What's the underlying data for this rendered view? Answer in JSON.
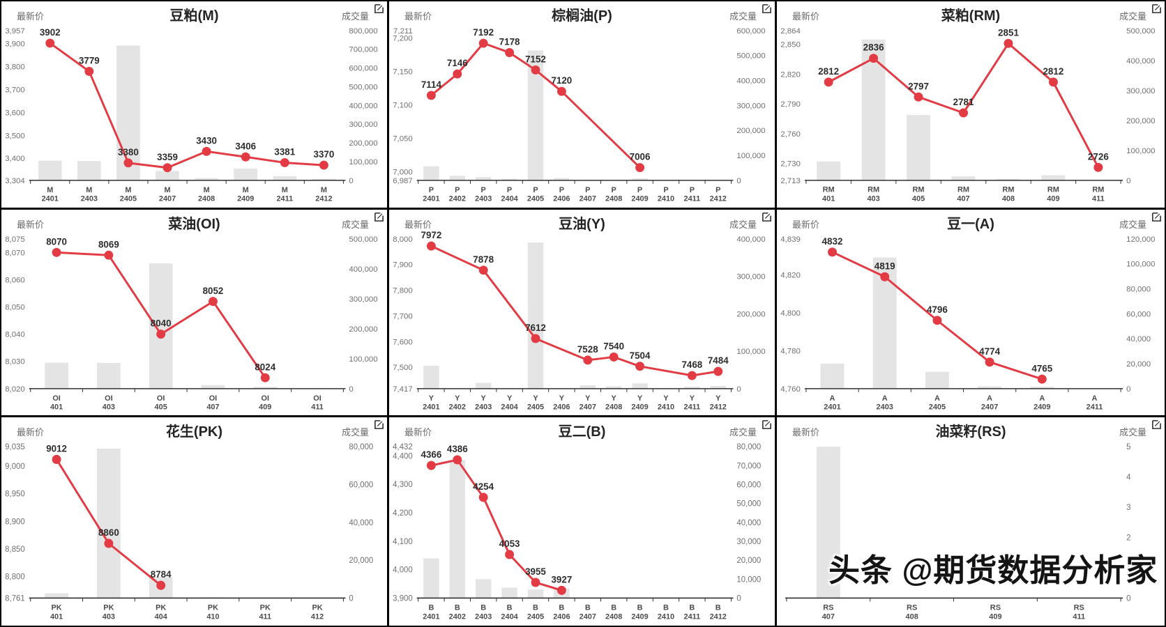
{
  "app": {
    "watermark": "头条 @期货数据分析家"
  },
  "labels": {
    "price_axis": "最新价",
    "volume_axis": "成交量"
  },
  "colors": {
    "line": "#e23b44",
    "point": "#e23b44",
    "bar": "#e4e4e4",
    "data_label": "#2d2d2d",
    "axis_text": "#6f6f6f",
    "category_text": "#4c4c4c",
    "title": "#242424",
    "axis_line": "#303030",
    "divider": "#000000",
    "watermark": "#141414"
  },
  "chart_data": [
    {
      "type": "line+bar",
      "title": "豆粕(M)",
      "categories": [
        [
          "M",
          "2401"
        ],
        [
          "M",
          "2403"
        ],
        [
          "M",
          "2405"
        ],
        [
          "M",
          "2407"
        ],
        [
          "M",
          "2408"
        ],
        [
          "M",
          "2409"
        ],
        [
          "M",
          "2411"
        ],
        [
          "M",
          "2412"
        ]
      ],
      "price_ticks": [
        "3,957",
        "3,900",
        "3,800",
        "3,700",
        "3,600",
        "3,500",
        "3,400",
        "3,304"
      ],
      "volume_ticks": [
        "800,000",
        "700,000",
        "600,000",
        "500,000",
        "400,000",
        "300,000",
        "200,000",
        "100,000",
        "0"
      ],
      "prices": [
        3902,
        3779,
        3380,
        3359,
        3430,
        3406,
        3381,
        3370
      ],
      "volumes": [
        105000,
        103000,
        720000,
        50000,
        12000,
        63000,
        22000,
        9000
      ]
    },
    {
      "type": "line+bar",
      "title": "棕榈油(P)",
      "categories": [
        [
          "P",
          "2401"
        ],
        [
          "P",
          "2402"
        ],
        [
          "P",
          "2403"
        ],
        [
          "P",
          "2404"
        ],
        [
          "P",
          "2405"
        ],
        [
          "P",
          "2406"
        ],
        [
          "P",
          "2407"
        ],
        [
          "P",
          "2408"
        ],
        [
          "P",
          "2409"
        ],
        [
          "P",
          "2410"
        ],
        [
          "P",
          "2411"
        ],
        [
          "P",
          "2412"
        ]
      ],
      "price_ticks": [
        "7,211",
        "7,200",
        "7,150",
        "7,100",
        "7,050",
        "7,000",
        "6,987"
      ],
      "volume_ticks": [
        "600,000",
        "500,000",
        "400,000",
        "300,000",
        "200,000",
        "100,000",
        "0"
      ],
      "prices": [
        7114,
        7146,
        7192,
        7178,
        7152,
        7120,
        null,
        null,
        7006,
        null,
        null,
        null
      ],
      "volumes": [
        56000,
        18000,
        13000,
        6000,
        520000,
        9000,
        0,
        0,
        8000,
        0,
        0,
        0
      ]
    },
    {
      "type": "line+bar",
      "title": "菜粕(RM)",
      "categories": [
        [
          "RM",
          "401"
        ],
        [
          "RM",
          "403"
        ],
        [
          "RM",
          "405"
        ],
        [
          "RM",
          "407"
        ],
        [
          "RM",
          "408"
        ],
        [
          "RM",
          "409"
        ],
        [
          "RM",
          "411"
        ]
      ],
      "price_ticks": [
        "2,864",
        "2,850",
        "2,820",
        "2,790",
        "2,760",
        "2,730",
        "2,713"
      ],
      "volume_ticks": [
        "500,000",
        "400,000",
        "300,000",
        "200,000",
        "100,000",
        "0"
      ],
      "prices": [
        2812,
        2836,
        2797,
        2781,
        2851,
        2812,
        2726
      ],
      "volumes": [
        63000,
        470000,
        218000,
        13000,
        4000,
        17000,
        1500
      ]
    },
    {
      "type": "line+bar",
      "title": "菜油(OI)",
      "categories": [
        [
          "OI",
          "401"
        ],
        [
          "OI",
          "403"
        ],
        [
          "OI",
          "405"
        ],
        [
          "OI",
          "407"
        ],
        [
          "OI",
          "409"
        ],
        [
          "OI",
          "411"
        ]
      ],
      "price_ticks": [
        "8,075",
        "8,070",
        "8,060",
        "8,050",
        "8,040",
        "8,030",
        "8,020"
      ],
      "volume_ticks": [
        "500,000",
        "400,000",
        "300,000",
        "200,000",
        "100,000",
        "0"
      ],
      "prices": [
        8070,
        8069,
        8040,
        8052,
        8024,
        null
      ],
      "volumes": [
        87000,
        86000,
        418000,
        12000,
        6000,
        0
      ]
    },
    {
      "type": "line+bar",
      "title": "豆油(Y)",
      "categories": [
        [
          "Y",
          "2401"
        ],
        [
          "Y",
          "2402"
        ],
        [
          "Y",
          "2403"
        ],
        [
          "Y",
          "2404"
        ],
        [
          "Y",
          "2405"
        ],
        [
          "Y",
          "2406"
        ],
        [
          "Y",
          "2407"
        ],
        [
          "Y",
          "2408"
        ],
        [
          "Y",
          "2409"
        ],
        [
          "Y",
          "2410"
        ],
        [
          "Y",
          "2411"
        ],
        [
          "Y",
          "2412"
        ]
      ],
      "price_ticks": [
        "8,000",
        "7,900",
        "7,800",
        "7,700",
        "7,600",
        "7,500",
        "7,417"
      ],
      "volume_ticks": [
        "400,000",
        "300,000",
        "200,000",
        "100,000",
        "0"
      ],
      "prices": [
        7972,
        null,
        7878,
        null,
        7612,
        null,
        7528,
        7540,
        7504,
        null,
        7468,
        7484
      ],
      "volumes": [
        61000,
        0,
        15500,
        0,
        390000,
        0,
        9000,
        6000,
        14000,
        0,
        5000,
        7000
      ]
    },
    {
      "type": "line+bar",
      "title": "豆一(A)",
      "categories": [
        [
          "A",
          "2401"
        ],
        [
          "A",
          "2403"
        ],
        [
          "A",
          "2405"
        ],
        [
          "A",
          "2407"
        ],
        [
          "A",
          "2409"
        ],
        [
          "A",
          "2411"
        ]
      ],
      "price_ticks": [
        "4,839",
        "4,820",
        "4,800",
        "4,780",
        "4,760"
      ],
      "volume_ticks": [
        "120,000",
        "100,000",
        "80,000",
        "60,000",
        "40,000",
        "20,000",
        "0"
      ],
      "prices": [
        4832,
        4819,
        4796,
        4774,
        4765,
        null
      ],
      "volumes": [
        20000,
        105000,
        13500,
        1800,
        1500,
        0
      ]
    },
    {
      "type": "line+bar",
      "title": "花生(PK)",
      "categories": [
        [
          "PK",
          "401"
        ],
        [
          "PK",
          "403"
        ],
        [
          "PK",
          "404"
        ],
        [
          "PK",
          "410"
        ],
        [
          "PK",
          "411"
        ],
        [
          "PK",
          "412"
        ]
      ],
      "price_ticks": [
        "9,035",
        "9,000",
        "8,950",
        "8,900",
        "8,850",
        "8,800",
        "8,761"
      ],
      "volume_ticks": [
        "80,000",
        "60,000",
        "40,000",
        "20,000",
        "0"
      ],
      "prices": [
        9012,
        8860,
        8784,
        null,
        null,
        null
      ],
      "volumes": [
        2500,
        79000,
        11000,
        400,
        0,
        0
      ]
    },
    {
      "type": "line+bar",
      "title": "豆二(B)",
      "categories": [
        [
          "B",
          "2401"
        ],
        [
          "B",
          "2402"
        ],
        [
          "B",
          "2403"
        ],
        [
          "B",
          "2404"
        ],
        [
          "B",
          "2405"
        ],
        [
          "B",
          "2406"
        ],
        [
          "B",
          "2407"
        ],
        [
          "B",
          "2408"
        ],
        [
          "B",
          "2409"
        ],
        [
          "B",
          "2410"
        ],
        [
          "B",
          "2411"
        ],
        [
          "B",
          "2412"
        ]
      ],
      "price_ticks": [
        "4,432",
        "4,400",
        "4,300",
        "4,200",
        "4,100",
        "4,000",
        "3,900"
      ],
      "volume_ticks": [
        "80,000",
        "70,000",
        "60,000",
        "50,000",
        "40,000",
        "30,000",
        "20,000",
        "10,000",
        "0"
      ],
      "prices": [
        4366,
        4386,
        4254,
        4053,
        3955,
        3927,
        null,
        null,
        null,
        null,
        null,
        null
      ],
      "volumes": [
        21000,
        73000,
        10000,
        5500,
        4500,
        5000,
        0,
        0,
        0,
        0,
        0,
        0
      ]
    },
    {
      "type": "line+bar",
      "title": "油菜籽(RS)",
      "categories": [
        [
          "RS",
          "407"
        ],
        [
          "RS",
          "408"
        ],
        [
          "RS",
          "409"
        ],
        [
          "RS",
          "411"
        ]
      ],
      "price_ticks": [],
      "volume_ticks": [
        "5",
        "4",
        "3",
        "2",
        "1",
        "0"
      ],
      "prices": [
        null,
        null,
        null,
        null
      ],
      "volumes": [
        5,
        0,
        0,
        0
      ]
    }
  ]
}
